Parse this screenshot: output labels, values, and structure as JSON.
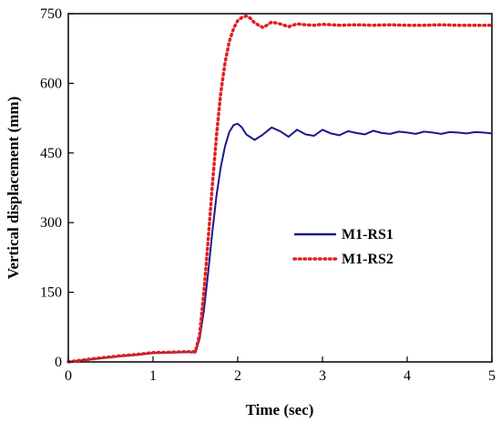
{
  "chart_data": {
    "type": "line",
    "xlabel": "Time (sec)",
    "ylabel": "Vertical displacement (mm)",
    "xlim": [
      0,
      5
    ],
    "ylim": [
      0,
      750
    ],
    "xticks": [
      0,
      1,
      2,
      3,
      4,
      5
    ],
    "yticks": [
      0,
      150,
      300,
      450,
      600,
      750
    ],
    "grid": false,
    "legend": {
      "position": "center-right"
    },
    "series": [
      {
        "name": "M1-RS1",
        "color": "#1a1a8c",
        "style": "solid",
        "x": [
          0,
          0.2,
          0.4,
          0.6,
          0.8,
          1.0,
          1.2,
          1.4,
          1.5,
          1.55,
          1.6,
          1.65,
          1.7,
          1.75,
          1.8,
          1.85,
          1.9,
          1.95,
          2.0,
          2.05,
          2.1,
          2.2,
          2.3,
          2.4,
          2.5,
          2.6,
          2.7,
          2.8,
          2.9,
          3.0,
          3.1,
          3.2,
          3.3,
          3.4,
          3.5,
          3.6,
          3.7,
          3.8,
          3.9,
          4.0,
          4.1,
          4.2,
          4.3,
          4.4,
          4.5,
          4.6,
          4.7,
          4.8,
          4.9,
          5.0
        ],
        "y": [
          0,
          4,
          8,
          12,
          15,
          19,
          20,
          21,
          20,
          50,
          110,
          190,
          280,
          360,
          420,
          465,
          495,
          510,
          513,
          505,
          490,
          478,
          490,
          505,
          497,
          485,
          500,
          490,
          487,
          500,
          492,
          488,
          497,
          493,
          490,
          498,
          493,
          491,
          496,
          494,
          491,
          496,
          494,
          491,
          495,
          494,
          492,
          495,
          494,
          492
        ]
      },
      {
        "name": "M1-RS2",
        "color": "#e02020",
        "style": "dotted",
        "x": [
          0,
          0.2,
          0.4,
          0.6,
          0.8,
          1.0,
          1.2,
          1.4,
          1.5,
          1.55,
          1.6,
          1.65,
          1.7,
          1.75,
          1.8,
          1.85,
          1.9,
          1.95,
          2.0,
          2.05,
          2.1,
          2.15,
          2.2,
          2.3,
          2.4,
          2.5,
          2.6,
          2.7,
          2.8,
          2.9,
          3.0,
          3.2,
          3.4,
          3.6,
          3.8,
          4.0,
          4.2,
          4.4,
          4.6,
          4.8,
          5.0
        ],
        "y": [
          0,
          5,
          9,
          13,
          16,
          20,
          21,
          22,
          22,
          60,
          150,
          260,
          380,
          490,
          580,
          645,
          690,
          718,
          735,
          742,
          745,
          740,
          730,
          720,
          732,
          728,
          722,
          728,
          726,
          725,
          727,
          725,
          726,
          725,
          726,
          725,
          725,
          726,
          725,
          725,
          725
        ]
      }
    ]
  }
}
